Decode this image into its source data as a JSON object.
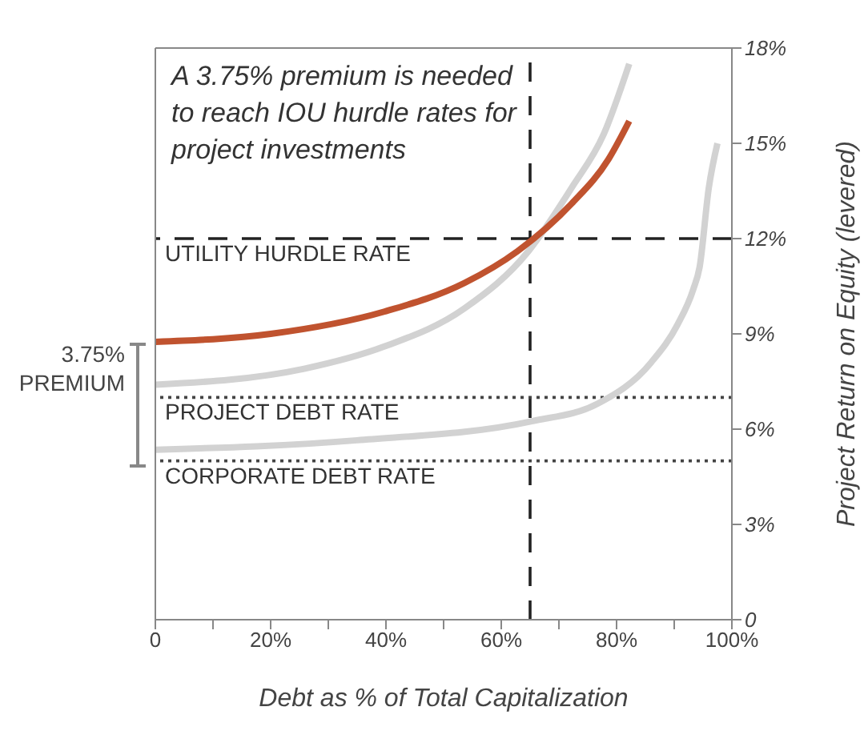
{
  "chart_data": {
    "type": "line",
    "xlabel": "Debt as % of Total Capitalization",
    "ylabel": "Project Return on Equity (levered)",
    "annotations": [
      "A 3.75% premium is needed to reach IOU hurdle rates for project investments",
      "3.75% PREMIUM"
    ],
    "series": [
      {
        "color": "#d2d2d2",
        "x": [
          0,
          25.8,
          39.7,
          53.6,
          64.7,
          72.2,
          77.8,
          82.2
        ],
        "values": [
          7.4,
          7.9,
          8.6,
          9.8,
          11.6,
          13.6,
          15.3,
          17.5
        ]
      },
      {
        "color": "#d2d2d2",
        "x": [
          0,
          35,
          65.3,
          76.7,
          86,
          90.6,
          93.3,
          94.4,
          96,
          97.5
        ],
        "values": [
          5.35,
          5.65,
          6.25,
          6.8,
          8.1,
          9.3,
          10.4,
          11.1,
          13.6,
          15
        ]
      },
      {
        "color": "#c0532f",
        "x": [
          0,
          20,
          39.7,
          53.6,
          62.8,
          72.2,
          78.6,
          82.2
        ],
        "values": [
          8.75,
          9,
          9.7,
          10.6,
          11.6,
          13.1,
          14.5,
          15.7
        ]
      }
    ],
    "xlim": [
      0,
      100
    ],
    "xticks": [
      0,
      {
        "value": 10,
        "label": null
      },
      {
        "value": 20,
        "label": "20%"
      },
      {
        "value": 30,
        "label": null
      },
      {
        "value": 40,
        "label": "40%"
      },
      {
        "value": 50,
        "label": null
      },
      {
        "value": 60,
        "label": "60%"
      },
      {
        "value": 70,
        "label": null
      },
      {
        "value": 80,
        "label": "80%"
      },
      {
        "value": 90,
        "label": null
      },
      {
        "value": 100,
        "label": "100%"
      }
    ],
    "ylim": [
      0,
      18
    ],
    "yticks": [
      0,
      {
        "value": 3,
        "label": "3%"
      },
      {
        "value": 6,
        "label": "6%"
      },
      {
        "value": 9,
        "label": "9%"
      },
      {
        "value": 12,
        "label": "12%"
      },
      {
        "value": 15,
        "label": "15%"
      },
      {
        "value": 18,
        "label": "18%"
      }
    ],
    "ref_lines": [
      {
        "axis": "y",
        "value": 12,
        "label": "UTILITY HURDLE RATE",
        "color": "#222222",
        "line_style": "dashed"
      },
      {
        "axis": "x",
        "value": 65,
        "label": null,
        "color": "#222222",
        "line_style": "dashed"
      },
      {
        "axis": "y",
        "value": 7,
        "label": "PROJECT DEBT RATE",
        "color": "#444444",
        "line_style": "dotted"
      },
      {
        "axis": "y",
        "value": 5,
        "label": "CORPORATE DEBT RATE",
        "color": "#444444",
        "line_style": "dotted"
      }
    ],
    "marker": "none",
    "line_style": "solid"
  }
}
